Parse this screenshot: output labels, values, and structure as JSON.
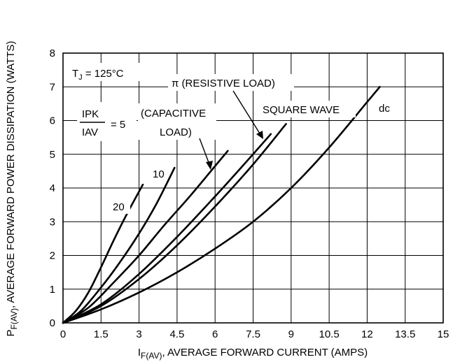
{
  "chart_data": {
    "type": "line",
    "title": "",
    "xlabel_main": "I",
    "xlabel_sub": "F(AV)",
    "xlabel_rest": ", AVERAGE FORWARD CURRENT (AMPS)",
    "ylabel_main": "P",
    "ylabel_sub": "F(AV)",
    "ylabel_rest": ", AVERAGE FORWARD POWER DISSIPATION (WATTS)",
    "xlim": [
      0,
      15
    ],
    "ylim": [
      0,
      8
    ],
    "x_ticks": [
      "0",
      "1.5",
      "3",
      "4.5",
      "6",
      "7.5",
      "9",
      "10.5",
      "12",
      "13.5",
      "15"
    ],
    "y_ticks": [
      "0",
      "1",
      "2",
      "3",
      "4",
      "5",
      "6",
      "7",
      "8"
    ],
    "grid": true,
    "annotations": {
      "tj_main": "T",
      "tj_sub": "J",
      "tj_rest": " = 125°C",
      "ratio_num": "IPK",
      "ratio_den": "IAV",
      "ratio_eq": "= 5",
      "capacitive_1": "(CAPACITIVE",
      "capacitive_2": "LOAD)",
      "resistive": "π (RESISTIVE LOAD)",
      "square": "SQUARE WAVE",
      "dc": "dc",
      "label_10": "10",
      "label_20": "20"
    },
    "series": [
      {
        "name": "20",
        "x": [
          0,
          0.5,
          1.0,
          1.5,
          2.0,
          2.5,
          3.15
        ],
        "y": [
          0,
          0.35,
          0.9,
          1.65,
          2.45,
          3.2,
          4.1
        ]
      },
      {
        "name": "10",
        "x": [
          0,
          0.7,
          1.5,
          2.2,
          3.0,
          3.7,
          4.4
        ],
        "y": [
          0,
          0.35,
          1.05,
          1.75,
          2.65,
          3.55,
          4.6
        ]
      },
      {
        "name": "5",
        "x": [
          0,
          1.0,
          2.0,
          3.0,
          4.0,
          5.0,
          6.0,
          6.5
        ],
        "y": [
          0,
          0.45,
          1.2,
          2.0,
          2.9,
          3.75,
          4.65,
          5.1
        ]
      },
      {
        "name": "π",
        "x": [
          0,
          1.5,
          3.0,
          4.5,
          6.0,
          7.2,
          8.2
        ],
        "y": [
          0,
          0.55,
          1.45,
          2.55,
          3.75,
          4.75,
          5.6
        ]
      },
      {
        "name": "SQUARE WAVE",
        "x": [
          0,
          1.5,
          3.0,
          4.5,
          6.0,
          7.5,
          8.8
        ],
        "y": [
          0,
          0.5,
          1.3,
          2.3,
          3.45,
          4.7,
          5.9
        ]
      },
      {
        "name": "dc",
        "x": [
          0,
          1.5,
          3.0,
          4.5,
          6.0,
          7.5,
          9.0,
          10.5,
          12.0,
          12.5
        ],
        "y": [
          0,
          0.4,
          0.9,
          1.5,
          2.2,
          3.0,
          4.0,
          5.2,
          6.55,
          7.0
        ]
      }
    ]
  }
}
